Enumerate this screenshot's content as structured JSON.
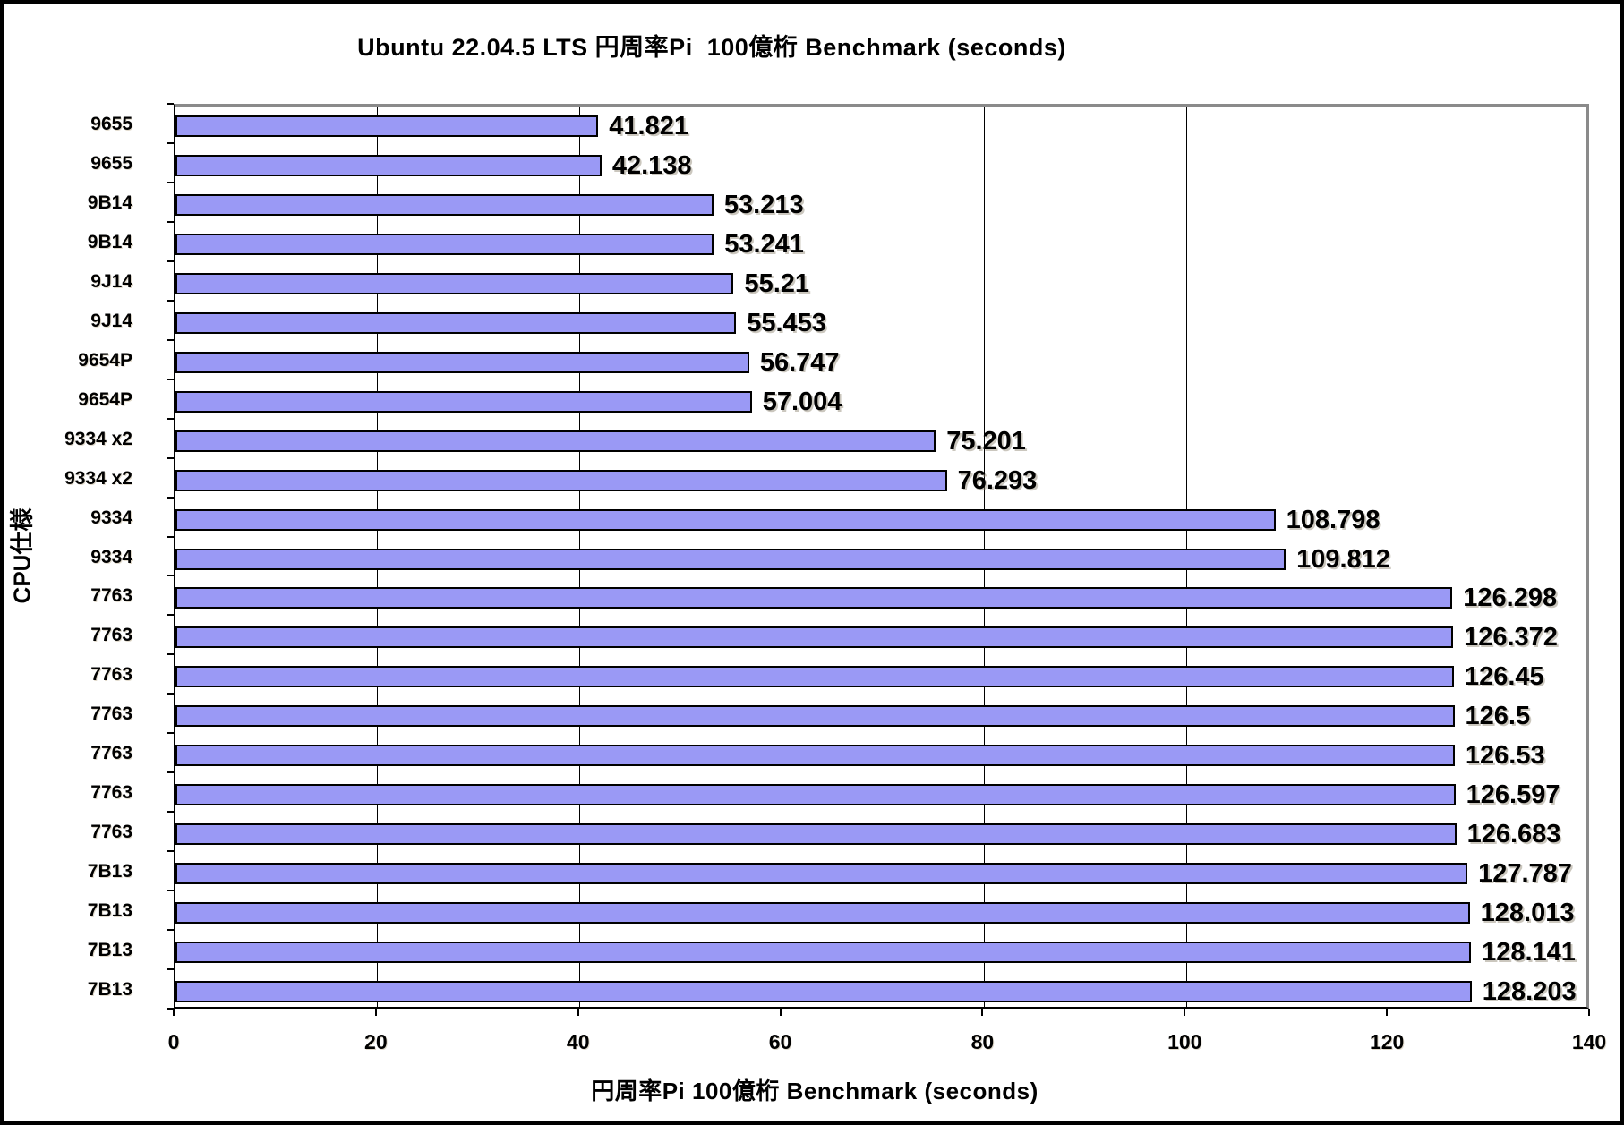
{
  "chart_data": {
    "type": "bar",
    "orientation": "horizontal",
    "title": "Ubuntu 22.04.5 LTS 円周率Pi  100億桁 Benchmark (seconds)",
    "xlabel": "円周率Pi 100億桁 Benchmark (seconds)",
    "ylabel": "CPU仕様",
    "categories": [
      "9655",
      "9655",
      "9B14",
      "9B14",
      "9J14",
      "9J14",
      "9654P",
      "9654P",
      "9334 x2",
      "9334 x2",
      "9334",
      "9334",
      "7763",
      "7763",
      "7763",
      "7763",
      "7763",
      "7763",
      "7763",
      "7B13",
      "7B13",
      "7B13",
      "7B13"
    ],
    "values": [
      41.821,
      42.138,
      53.213,
      53.241,
      55.21,
      55.453,
      56.747,
      57.004,
      75.201,
      76.293,
      108.798,
      109.812,
      126.298,
      126.372,
      126.45,
      126.5,
      126.53,
      126.597,
      126.683,
      127.787,
      128.013,
      128.141,
      128.203
    ],
    "value_labels": [
      "41.821",
      "42.138",
      "53.213",
      "53.241",
      "55.21",
      "55.453",
      "56.747",
      "57.004",
      "75.201",
      "76.293",
      "108.798",
      "109.812",
      "126.298",
      "126.372",
      "126.45",
      "126.5",
      "126.53",
      "126.597",
      "126.683",
      "127.787",
      "128.013",
      "128.141",
      "128.203"
    ],
    "xlim": [
      0,
      140
    ],
    "xticks": [
      0,
      20,
      40,
      60,
      80,
      100,
      120,
      140
    ],
    "grid": true,
    "legend": false,
    "bar_color": "#9a99f5",
    "bar_border_color": "#000000",
    "gridline_color": "#000000",
    "plot_border_color": "#8a8a8a"
  }
}
